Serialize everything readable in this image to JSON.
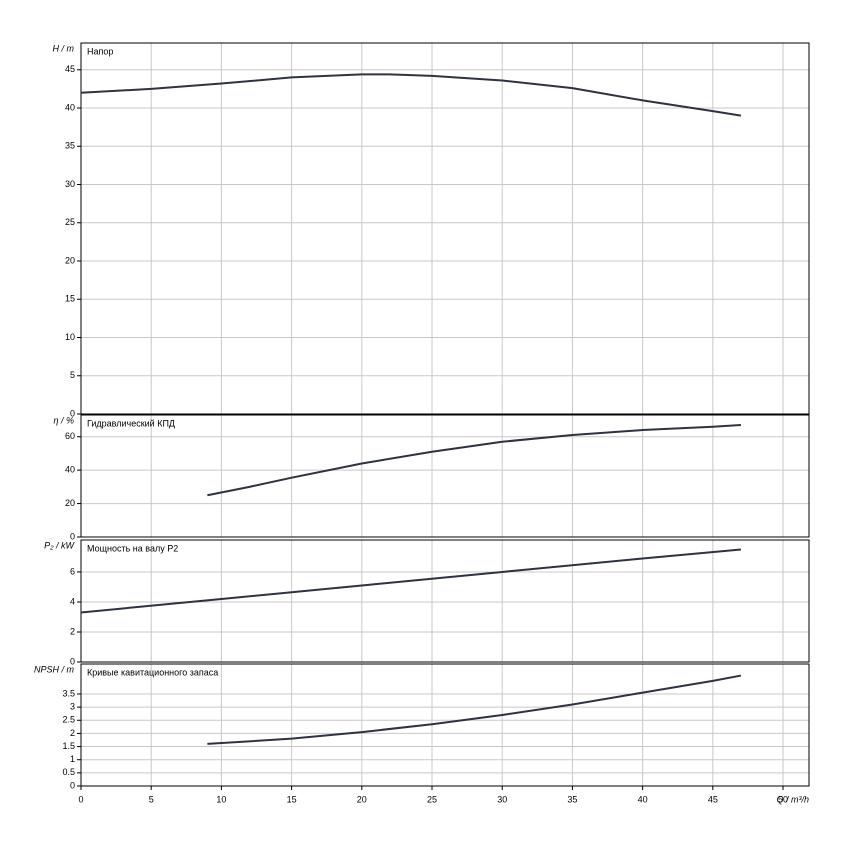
{
  "chart_data": [
    {
      "type": "line",
      "title": "Напор",
      "ylabel": "H / m",
      "color": "#2e3340",
      "xlim": [
        0,
        51.85
      ],
      "ylim": [
        0,
        48.5
      ],
      "yticks": [
        0,
        5,
        10,
        15,
        20,
        25,
        30,
        35,
        40,
        45
      ],
      "x": [
        0,
        5,
        10,
        15,
        20,
        22,
        25,
        30,
        35,
        40,
        45,
        47
      ],
      "values": [
        42,
        42.5,
        43.2,
        44,
        44.4,
        44.4,
        44.2,
        43.6,
        42.6,
        41,
        39.6,
        39
      ]
    },
    {
      "type": "line",
      "title": "Гидравлический КПД",
      "ylabel": "η / %",
      "color": "#2e3340",
      "xlim": [
        0,
        51.85
      ],
      "ylim": [
        0,
        73
      ],
      "yticks": [
        0,
        20,
        40,
        60
      ],
      "x": [
        9,
        12,
        15,
        20,
        25,
        30,
        35,
        40,
        45,
        47
      ],
      "values": [
        25,
        30,
        35.5,
        44,
        51,
        57,
        61,
        64,
        66,
        67
      ]
    },
    {
      "type": "line",
      "title": "Мощность на валу P2",
      "ylabel": "P₂ / kW",
      "color": "#2e3340",
      "xlim": [
        0,
        51.85
      ],
      "ylim": [
        0,
        8.13
      ],
      "yticks": [
        0,
        2,
        4,
        6
      ],
      "x": [
        0,
        10,
        20,
        30,
        40,
        47
      ],
      "values": [
        3.3,
        4.2,
        5.1,
        6.0,
        6.9,
        7.5
      ]
    },
    {
      "type": "line",
      "title": "Кривые кавитационного запаса",
      "ylabel": "NPSH / m",
      "xlabel": "Q / m³/h",
      "color": "#2e3340",
      "xlim": [
        0,
        51.85
      ],
      "ylim": [
        0,
        4.64
      ],
      "yticks": [
        0,
        0.5,
        1,
        1.5,
        2,
        2.5,
        3,
        3.5
      ],
      "xticks": [
        0,
        5,
        10,
        15,
        20,
        25,
        30,
        35,
        40,
        45,
        50
      ],
      "x": [
        9,
        15,
        20,
        25,
        30,
        35,
        40,
        45,
        47
      ],
      "values": [
        1.6,
        1.8,
        2.05,
        2.35,
        2.7,
        3.1,
        3.55,
        4.0,
        4.2
      ]
    }
  ]
}
